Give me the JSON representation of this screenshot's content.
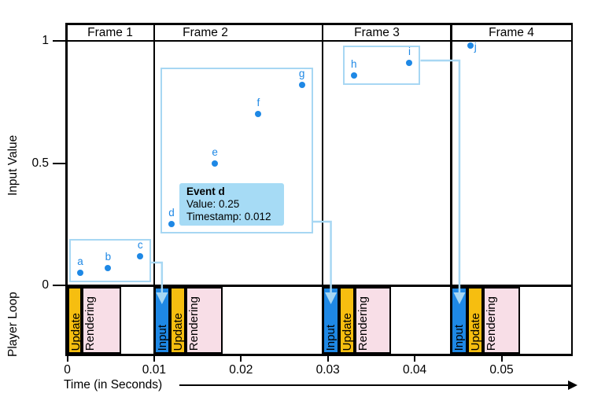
{
  "chart_data": {
    "type": "scatter",
    "title": "",
    "xlabel": "Time (in Seconds)",
    "ylabel": "Input Value",
    "secondary_ylabel": "Player Loop",
    "xlim": [
      0,
      0.058
    ],
    "ylim": [
      0,
      1
    ],
    "grid": false,
    "x_ticks": [
      0,
      0.01,
      0.02,
      0.03,
      0.04,
      0.05
    ],
    "x_tick_labels": [
      "0",
      "0.01",
      "0.02",
      "0.03",
      "0.04",
      "0.05"
    ],
    "y_ticks": [
      0,
      0.5,
      1
    ],
    "y_tick_labels": [
      "0",
      "0.5",
      "1"
    ],
    "frames": [
      {
        "label": "Frame 1",
        "start": 0,
        "end": 0.01
      },
      {
        "label": "Frame 2",
        "start": 0.01,
        "end": 0.0294
      },
      {
        "label": "Frame 3",
        "start": 0.0294,
        "end": 0.0442
      },
      {
        "label": "Frame 4",
        "start": 0.0442,
        "end": 0.058
      }
    ],
    "events": [
      {
        "name": "a",
        "timestamp": 0.0015,
        "value": 0.05
      },
      {
        "name": "b",
        "timestamp": 0.0047,
        "value": 0.07
      },
      {
        "name": "c",
        "timestamp": 0.0084,
        "value": 0.12
      },
      {
        "name": "d",
        "timestamp": 0.012,
        "value": 0.25
      },
      {
        "name": "e",
        "timestamp": 0.017,
        "value": 0.5
      },
      {
        "name": "f",
        "timestamp": 0.022,
        "value": 0.7
      },
      {
        "name": "g",
        "timestamp": 0.027,
        "value": 0.82
      },
      {
        "name": "h",
        "timestamp": 0.033,
        "value": 0.86
      },
      {
        "name": "i",
        "timestamp": 0.0394,
        "value": 0.91
      },
      {
        "name": "j",
        "timestamp": 0.0464,
        "value": 0.98,
        "label_side": "right"
      }
    ],
    "event_groups": [
      {
        "members": [
          "a",
          "b",
          "c"
        ],
        "arrow_to_frame": "Frame 2"
      },
      {
        "members": [
          "d",
          "e",
          "f",
          "g"
        ],
        "arrow_to_frame": "Frame 3"
      },
      {
        "members": [
          "h",
          "i"
        ],
        "arrow_to_frame": "Frame 4"
      }
    ],
    "player_loop": [
      {
        "frame": "Frame 1",
        "segments": [
          {
            "label": "Update",
            "start": 0,
            "end": 0.0017,
            "color": "update"
          },
          {
            "label": "Rendering",
            "start": 0.0017,
            "end": 0.0062,
            "color": "rendering"
          }
        ]
      },
      {
        "frame": "Frame 2",
        "segments": [
          {
            "label": "Input",
            "start": 0.01,
            "end": 0.0118,
            "color": "input"
          },
          {
            "label": "Update",
            "start": 0.0118,
            "end": 0.0136,
            "color": "update"
          },
          {
            "label": "Rendering",
            "start": 0.0136,
            "end": 0.0179,
            "color": "rendering"
          }
        ]
      },
      {
        "frame": "Frame 3",
        "segments": [
          {
            "label": "Input",
            "start": 0.0294,
            "end": 0.0313,
            "color": "input"
          },
          {
            "label": "Update",
            "start": 0.0313,
            "end": 0.0331,
            "color": "update"
          },
          {
            "label": "Rendering",
            "start": 0.0331,
            "end": 0.0373,
            "color": "rendering"
          }
        ]
      },
      {
        "frame": "Frame 4",
        "segments": [
          {
            "label": "Input",
            "start": 0.0442,
            "end": 0.0461,
            "color": "input"
          },
          {
            "label": "Update",
            "start": 0.0461,
            "end": 0.0479,
            "color": "update"
          },
          {
            "label": "Rendering",
            "start": 0.0479,
            "end": 0.0521,
            "color": "rendering"
          }
        ]
      }
    ],
    "tooltip": {
      "title": "Event d",
      "value_line": "Value: 0.25",
      "timestamp_line": "Timestamp: 0.012"
    },
    "colors": {
      "event_blue": "#1E88E5",
      "input": "#1E88E5",
      "update": "#F6BE10",
      "rendering": "#F8DEE7",
      "accent_light_blue": "#A7D7F3",
      "tooltip_bg": "#A6DBF5",
      "line_black": "#000000"
    },
    "legend": null
  }
}
